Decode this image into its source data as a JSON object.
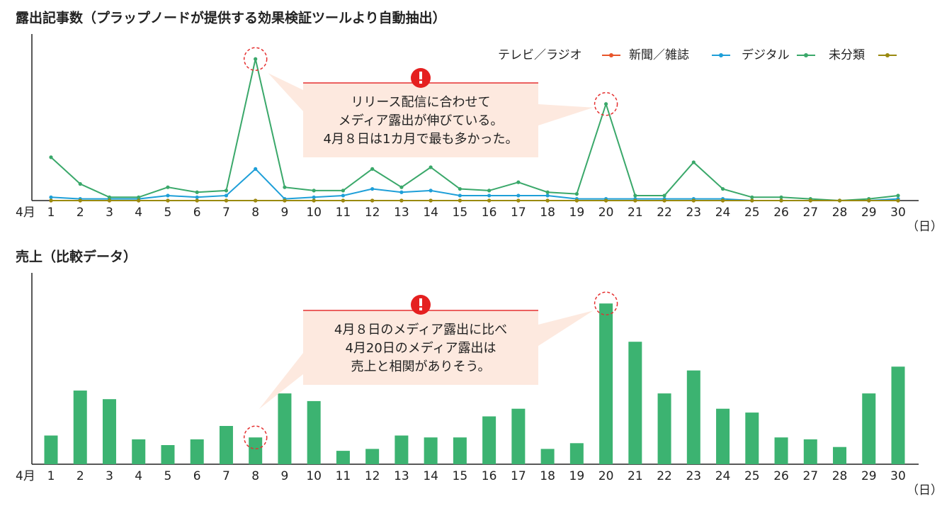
{
  "chart_data": [
    {
      "type": "line",
      "title": "露出記事数（プラップノードが提供する効果検証ツールより自動抽出）",
      "x_prefix": "4月",
      "x_unit": "（日）",
      "categories": [
        "1",
        "2",
        "3",
        "4",
        "5",
        "6",
        "7",
        "8",
        "9",
        "10",
        "11",
        "12",
        "13",
        "14",
        "15",
        "16",
        "17",
        "18",
        "19",
        "20",
        "21",
        "22",
        "23",
        "24",
        "25",
        "26",
        "27",
        "28",
        "29",
        "30"
      ],
      "ylim": [
        0,
        100
      ],
      "series": [
        {
          "name": "テレビ／ラジオ",
          "color": "#e8552a",
          "values": [
            0,
            0,
            0,
            0,
            0,
            0,
            0,
            0,
            0,
            0,
            0,
            0,
            0,
            0,
            0,
            0,
            0,
            0,
            0,
            0,
            0,
            0,
            0,
            0,
            0,
            0,
            0,
            0,
            0,
            0
          ]
        },
        {
          "name": "新聞／雑誌",
          "color": "#1e9fd8",
          "values": [
            2,
            1,
            1,
            1,
            3,
            2,
            3,
            19,
            1,
            2,
            3,
            7,
            5,
            6,
            3,
            3,
            3,
            3,
            1,
            1,
            1,
            1,
            1,
            1,
            0,
            0,
            0,
            0,
            0,
            1
          ]
        },
        {
          "name": "デジタル",
          "color": "#3aa86a",
          "values": [
            26,
            10,
            2,
            2,
            8,
            5,
            6,
            85,
            8,
            6,
            6,
            19,
            8,
            20,
            7,
            6,
            11,
            5,
            4,
            58,
            3,
            3,
            23,
            7,
            2,
            2,
            1,
            0,
            1,
            3
          ]
        },
        {
          "name": "未分類",
          "color": "#9a8a10",
          "values": [
            0,
            0,
            0,
            0,
            0,
            0,
            0,
            0,
            0,
            0,
            0,
            0,
            0,
            0,
            0,
            0,
            0,
            0,
            0,
            0,
            0,
            0,
            0,
            0,
            0,
            0,
            0,
            0,
            0,
            0
          ]
        }
      ],
      "annotation": [
        "リリース配信に合わせて",
        "メディア露出が伸びている。",
        "4月８日は1カ月で最も多かった。"
      ]
    },
    {
      "type": "bar",
      "title": "売上（比較データ）",
      "x_prefix": "4月",
      "x_unit": "（日）",
      "categories": [
        "1",
        "2",
        "3",
        "4",
        "5",
        "6",
        "7",
        "8",
        "9",
        "10",
        "11",
        "12",
        "13",
        "14",
        "15",
        "16",
        "17",
        "18",
        "19",
        "20",
        "21",
        "22",
        "23",
        "24",
        "25",
        "26",
        "27",
        "28",
        "29",
        "30"
      ],
      "ylim": [
        0,
        100
      ],
      "color": "#3cb371",
      "values": [
        15,
        38.5,
        34,
        13,
        10,
        13,
        20,
        14,
        37,
        33,
        7,
        8,
        15,
        14,
        14,
        25,
        29,
        8,
        11,
        84,
        64,
        37,
        49,
        29,
        27,
        14,
        13,
        9,
        37,
        51
      ],
      "annotation": [
        "4月８日のメディア露出に比べ",
        "4月20日のメディア露出は",
        "売上と相関がありそう。"
      ]
    }
  ]
}
